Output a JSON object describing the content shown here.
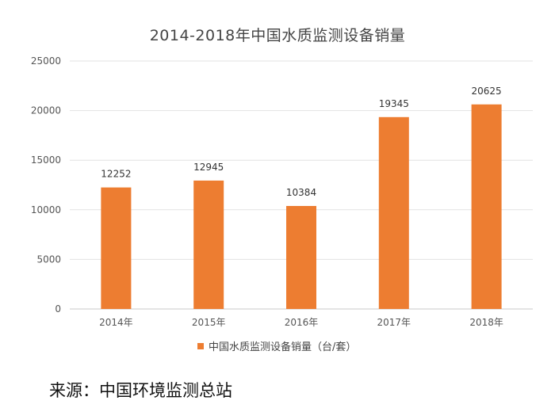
{
  "chart_data": {
    "type": "bar",
    "title": "2014-2018年中国水质监测设备销量",
    "categories": [
      "2014年",
      "2015年",
      "2016年",
      "2017年",
      "2018年"
    ],
    "series": [
      {
        "name": "中国水质监测设备销量（台/套）",
        "values": [
          12252,
          12945,
          10384,
          19345,
          20625
        ],
        "color": "#ED7D31"
      }
    ],
    "ylim": [
      0,
      25000
    ],
    "yticks": [
      0,
      5000,
      10000,
      15000,
      20000,
      25000
    ],
    "grid": true,
    "legend": "bottom",
    "data_labels": true
  },
  "source_note": "来源：中国环境监测总站"
}
